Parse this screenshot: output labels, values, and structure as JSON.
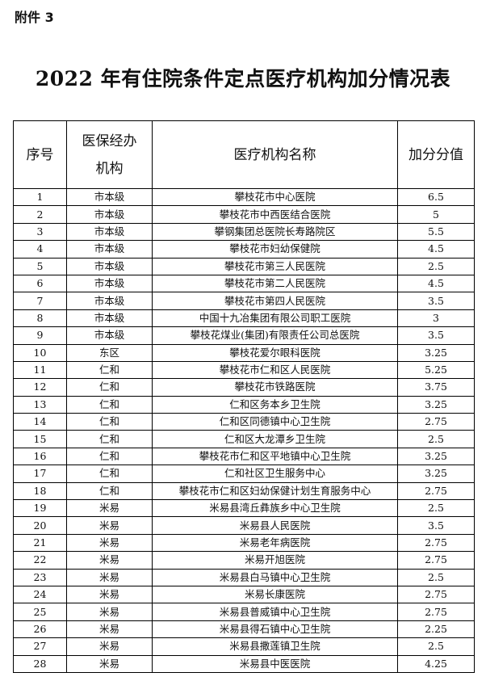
{
  "attachment": "附件 3",
  "title": "2022 年有住院条件定点医疗机构加分情况表",
  "headers": [
    "序号",
    "医保经办机构",
    "医疗机构名称",
    "加分分值"
  ],
  "header_lines": {
    "agency_1": "医保经办",
    "agency_2": "机构"
  },
  "rows": [
    [
      "1",
      "市本级",
      "攀枝花市中心医院",
      "6.5"
    ],
    [
      "2",
      "市本级",
      "攀枝花市中西医结合医院",
      "5"
    ],
    [
      "3",
      "市本级",
      "攀钢集团总医院长寿路院区",
      "5.5"
    ],
    [
      "4",
      "市本级",
      "攀枝花市妇幼保健院",
      "4.5"
    ],
    [
      "5",
      "市本级",
      "攀枝花市第三人民医院",
      "2.5"
    ],
    [
      "6",
      "市本级",
      "攀枝花市第二人民医院",
      "4.5"
    ],
    [
      "7",
      "市本级",
      "攀枝花市第四人民医院",
      "3.5"
    ],
    [
      "8",
      "市本级",
      "中国十九冶集团有限公司职工医院",
      "3"
    ],
    [
      "9",
      "市本级",
      "攀枝花煤业(集团)有限责任公司总医院",
      "3.5"
    ],
    [
      "10",
      "东区",
      "攀枝花爱尔眼科医院",
      "3.25"
    ],
    [
      "11",
      "仁和",
      "攀枝花市仁和区人民医院",
      "5.25"
    ],
    [
      "12",
      "仁和",
      "攀枝花市铁路医院",
      "3.75"
    ],
    [
      "13",
      "仁和",
      "仁和区务本乡卫生院",
      "3.25"
    ],
    [
      "14",
      "仁和",
      "仁和区同德镇中心卫生院",
      "2.75"
    ],
    [
      "15",
      "仁和",
      "仁和区大龙潭乡卫生院",
      "2.5"
    ],
    [
      "16",
      "仁和",
      "攀枝花市仁和区平地镇中心卫生院",
      "3.25"
    ],
    [
      "17",
      "仁和",
      "仁和社区卫生服务中心",
      "3.25"
    ],
    [
      "18",
      "仁和",
      "攀枝花市仁和区妇幼保健计划生育服务中心",
      "2.75"
    ],
    [
      "19",
      "米易",
      "米易县湾丘彝族乡中心卫生院",
      "2.5"
    ],
    [
      "20",
      "米易",
      "米易县人民医院",
      "3.5"
    ],
    [
      "21",
      "米易",
      "米易老年病医院",
      "2.75"
    ],
    [
      "22",
      "米易",
      "米易开旭医院",
      "2.75"
    ],
    [
      "23",
      "米易",
      "米易县白马镇中心卫生院",
      "2.5"
    ],
    [
      "24",
      "米易",
      "米易长康医院",
      "2.75"
    ],
    [
      "25",
      "米易",
      "米易县普威镇中心卫生院",
      "2.75"
    ],
    [
      "26",
      "米易",
      "米易县得石镇中心卫生院",
      "2.25"
    ],
    [
      "27",
      "米易",
      "米易县撒莲镇卫生院",
      "2.5"
    ],
    [
      "28",
      "米易",
      "米易县中医医院",
      "4.25"
    ]
  ]
}
